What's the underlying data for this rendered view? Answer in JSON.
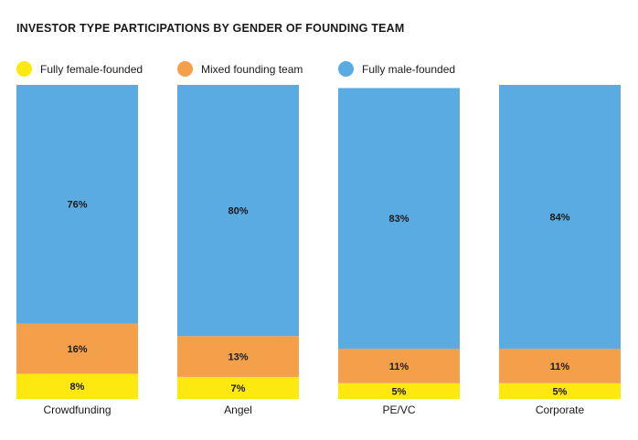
{
  "chart_data": {
    "type": "bar",
    "stacked": true,
    "title": "INVESTOR TYPE PARTICIPATIONS BY GENDER OF FOUNDING TEAM",
    "categories": [
      "Crowdfunding",
      "Angel",
      "PE/VC",
      "Corporate"
    ],
    "series": [
      {
        "name": "Fully female-founded",
        "color": "#fde80f",
        "values": [
          8,
          7,
          5,
          5
        ]
      },
      {
        "name": "Mixed founding team",
        "color": "#f4a04a",
        "values": [
          16,
          13,
          11,
          11
        ]
      },
      {
        "name": "Fully male-founded",
        "color": "#5aabe2",
        "values": [
          76,
          80,
          83,
          84
        ]
      }
    ],
    "value_suffix": "%",
    "ylim": [
      0,
      100
    ],
    "legend_position": "top",
    "grid": false
  }
}
